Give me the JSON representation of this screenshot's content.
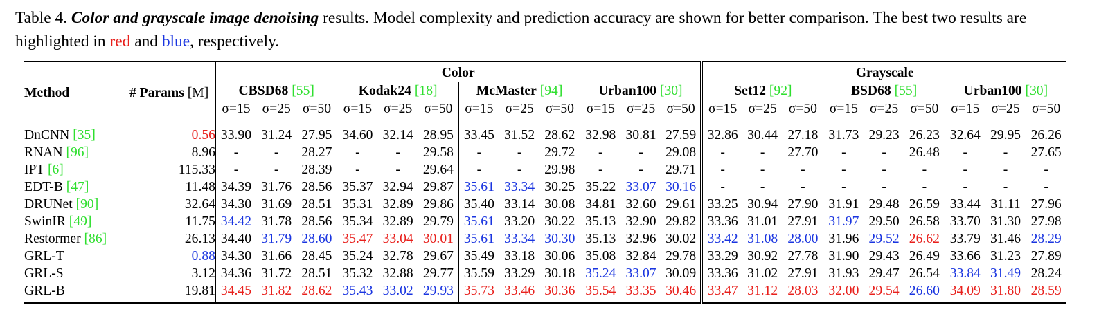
{
  "caption": {
    "prefix": "Table 4.",
    "title": "Color and grayscale image denoising",
    "text1": "results. Model complexity and prediction accuracy are shown for better comparison. The best two results are highlighted in",
    "red_word": "red",
    "and_word": "and",
    "blue_word": "blue",
    "suffix": ", respectively."
  },
  "header": {
    "method": "Method",
    "params_bold": "# Params",
    "params_unit": "[M]",
    "groups": [
      "Color",
      "Grayscale"
    ],
    "datasets": [
      {
        "name": "CBSD68",
        "ref": "[55]"
      },
      {
        "name": "Kodak24",
        "ref": "[18]"
      },
      {
        "name": "McMaster",
        "ref": "[94]"
      },
      {
        "name": "Urban100",
        "ref": "[30]"
      },
      {
        "name": "Set12",
        "ref": "[92]"
      },
      {
        "name": "BSD68",
        "ref": "[55]"
      },
      {
        "name": "Urban100",
        "ref": "[30]"
      }
    ],
    "sigmas": [
      "σ=15",
      "σ=25",
      "σ=50"
    ]
  },
  "colors": {
    "red": "#e8201c",
    "blue": "#1a35e0",
    "green": "#2fdf2f"
  },
  "rows": [
    {
      "method": "DnCNN",
      "ref": "[35]",
      "params": "0.56",
      "params_hl": "r",
      "cells": [
        "33.90",
        "31.24",
        "27.95",
        "34.60",
        "32.14",
        "28.95",
        "33.45",
        "31.52",
        "28.62",
        "32.98",
        "30.81",
        "27.59",
        "32.86",
        "30.44",
        "27.18",
        "31.73",
        "29.23",
        "26.23",
        "32.64",
        "29.95",
        "26.26"
      ],
      "hl": [
        "",
        "",
        "",
        "",
        "",
        "",
        "",
        "",
        "",
        "",
        "",
        "",
        "",
        "",
        "",
        "",
        "",
        "",
        "",
        "",
        ""
      ]
    },
    {
      "method": "RNAN",
      "ref": "[96]",
      "params": "8.96",
      "params_hl": "",
      "cells": [
        "-",
        "-",
        "28.27",
        "-",
        "-",
        "29.58",
        "-",
        "-",
        "29.72",
        "-",
        "-",
        "29.08",
        "-",
        "-",
        "27.70",
        "-",
        "-",
        "26.48",
        "-",
        "-",
        "27.65"
      ],
      "hl": [
        "",
        "",
        "",
        "",
        "",
        "",
        "",
        "",
        "",
        "",
        "",
        "",
        "",
        "",
        "",
        "",
        "",
        "",
        "",
        "",
        ""
      ]
    },
    {
      "method": "IPT",
      "ref": "[6]",
      "params": "115.33",
      "params_hl": "",
      "cells": [
        "-",
        "-",
        "28.39",
        "-",
        "-",
        "29.64",
        "-",
        "-",
        "29.98",
        "-",
        "-",
        "29.71",
        "-",
        "-",
        "-",
        "-",
        "-",
        "-",
        "-",
        "-",
        "-"
      ],
      "hl": [
        "",
        "",
        "",
        "",
        "",
        "",
        "",
        "",
        "",
        "",
        "",
        "",
        "",
        "",
        "",
        "",
        "",
        "",
        "",
        "",
        ""
      ]
    },
    {
      "method": "EDT-B",
      "ref": "[47]",
      "params": "11.48",
      "params_hl": "",
      "cells": [
        "34.39",
        "31.76",
        "28.56",
        "35.37",
        "32.94",
        "29.87",
        "35.61",
        "33.34",
        "30.25",
        "35.22",
        "33.07",
        "30.16",
        "-",
        "-",
        "-",
        "-",
        "-",
        "-",
        "-",
        "-",
        "-"
      ],
      "hl": [
        "",
        "",
        "",
        "",
        "",
        "",
        "b",
        "b",
        "",
        "",
        "b",
        "b",
        "",
        "",
        "",
        "",
        "",
        "",
        "",
        "",
        ""
      ]
    },
    {
      "method": "DRUNet",
      "ref": "[90]",
      "params": "32.64",
      "params_hl": "",
      "cells": [
        "34.30",
        "31.69",
        "28.51",
        "35.31",
        "32.89",
        "29.86",
        "35.40",
        "33.14",
        "30.08",
        "34.81",
        "32.60",
        "29.61",
        "33.25",
        "30.94",
        "27.90",
        "31.91",
        "29.48",
        "26.59",
        "33.44",
        "31.11",
        "27.96"
      ],
      "hl": [
        "",
        "",
        "",
        "",
        "",
        "",
        "",
        "",
        "",
        "",
        "",
        "",
        "",
        "",
        "",
        "",
        "",
        "",
        "",
        "",
        ""
      ]
    },
    {
      "method": "SwinIR",
      "ref": "[49]",
      "params": "11.75",
      "params_hl": "",
      "cells": [
        "34.42",
        "31.78",
        "28.56",
        "35.34",
        "32.89",
        "29.79",
        "35.61",
        "33.20",
        "30.22",
        "35.13",
        "32.90",
        "29.82",
        "33.36",
        "31.01",
        "27.91",
        "31.97",
        "29.50",
        "26.58",
        "33.70",
        "31.30",
        "27.98"
      ],
      "hl": [
        "b",
        "",
        "",
        "",
        "",
        "",
        "b",
        "",
        "",
        "",
        "",
        "",
        "",
        "",
        "",
        "b",
        "",
        "",
        "",
        "",
        ""
      ]
    },
    {
      "method": "Restormer",
      "ref": "[86]",
      "params": "26.13",
      "params_hl": "",
      "cells": [
        "34.40",
        "31.79",
        "28.60",
        "35.47",
        "33.04",
        "30.01",
        "35.61",
        "33.34",
        "30.30",
        "35.13",
        "32.96",
        "30.02",
        "33.42",
        "31.08",
        "28.00",
        "31.96",
        "29.52",
        "26.62",
        "33.79",
        "31.46",
        "28.29"
      ],
      "hl": [
        "",
        "b",
        "b",
        "r",
        "r",
        "r",
        "b",
        "b",
        "b",
        "",
        "",
        "",
        "b",
        "b",
        "b",
        "",
        "b",
        "r",
        "",
        "",
        "b"
      ]
    },
    {
      "method": "GRL-T",
      "ref": "",
      "params": "0.88",
      "params_hl": "b",
      "cells": [
        "34.30",
        "31.66",
        "28.45",
        "35.24",
        "32.78",
        "29.67",
        "35.49",
        "33.18",
        "30.06",
        "35.08",
        "32.84",
        "29.78",
        "33.29",
        "30.92",
        "27.78",
        "31.90",
        "29.43",
        "26.49",
        "33.66",
        "31.23",
        "27.89"
      ],
      "hl": [
        "",
        "",
        "",
        "",
        "",
        "",
        "",
        "",
        "",
        "",
        "",
        "",
        "",
        "",
        "",
        "",
        "",
        "",
        "",
        "",
        ""
      ]
    },
    {
      "method": "GRL-S",
      "ref": "",
      "params": "3.12",
      "params_hl": "",
      "cells": [
        "34.36",
        "31.72",
        "28.51",
        "35.32",
        "32.88",
        "29.77",
        "35.59",
        "33.29",
        "30.18",
        "35.24",
        "33.07",
        "30.09",
        "33.36",
        "31.02",
        "27.91",
        "31.93",
        "29.47",
        "26.54",
        "33.84",
        "31.49",
        "28.24"
      ],
      "hl": [
        "",
        "",
        "",
        "",
        "",
        "",
        "",
        "",
        "",
        "b",
        "b",
        "",
        "",
        "",
        "",
        "",
        "",
        "",
        "b",
        "b",
        ""
      ]
    },
    {
      "method": "GRL-B",
      "ref": "",
      "params": "19.81",
      "params_hl": "",
      "cells": [
        "34.45",
        "31.82",
        "28.62",
        "35.43",
        "33.02",
        "29.93",
        "35.73",
        "33.46",
        "30.36",
        "35.54",
        "33.35",
        "30.46",
        "33.47",
        "31.12",
        "28.03",
        "32.00",
        "29.54",
        "26.60",
        "34.09",
        "31.80",
        "28.59"
      ],
      "hl": [
        "r",
        "r",
        "r",
        "b",
        "b",
        "b",
        "r",
        "r",
        "r",
        "r",
        "r",
        "r",
        "r",
        "r",
        "r",
        "r",
        "r",
        "b",
        "r",
        "r",
        "r"
      ]
    }
  ]
}
